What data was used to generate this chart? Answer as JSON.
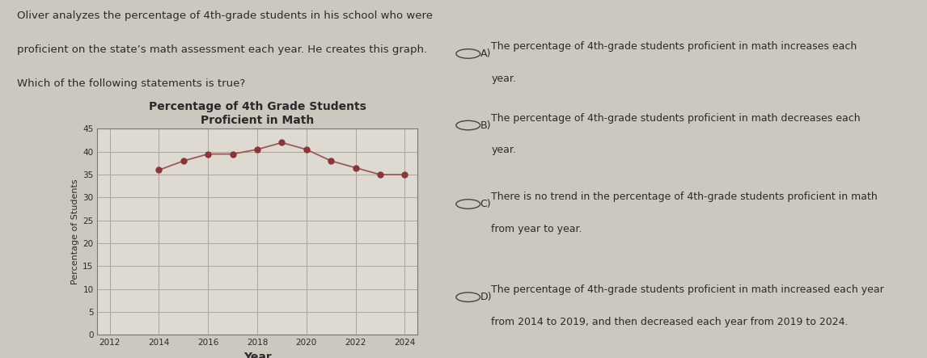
{
  "title_line1": "Percentage of 4th Grade Students",
  "title_line2": "Proficient in Math",
  "xlabel": "Year",
  "ylabel": "Percentage of Students",
  "years": [
    2014,
    2015,
    2016,
    2017,
    2018,
    2019,
    2020,
    2021,
    2022,
    2023,
    2024
  ],
  "values": [
    36,
    38,
    39.5,
    39.5,
    40.5,
    42,
    40.5,
    38,
    36.5,
    35,
    35
  ],
  "line_color": "#9b5a5a",
  "marker_color": "#8b3535",
  "bg_color": "#ccc8c0",
  "plot_bg_color": "#dedad2",
  "grid_color": "#aaa69e",
  "ylim": [
    0,
    45
  ],
  "yticks": [
    0,
    5,
    10,
    15,
    20,
    25,
    30,
    35,
    40,
    45
  ],
  "xtick_start": 2012,
  "xtick_end": 2024,
  "xtick_step": 2,
  "text_color": "#2a2a2a",
  "question_text_line1": "Oliver analyzes the percentage of 4th-grade students in his school who were",
  "question_text_line2": "proficient on the state’s math assessment each year. He creates this graph.",
  "question_text_line3": "Which of the following statements is true?",
  "opt_A_line1": "The percentage of 4th-grade students proficient in math increases each",
  "opt_A_line2": "year.",
  "opt_B_line1": "The percentage of 4th-grade students proficient in math decreases each",
  "opt_B_line2": "year.",
  "opt_C_line1": "There is no trend in the percentage of 4th-grade students proficient in math",
  "opt_C_line2": "from year to year.",
  "opt_D_line1": "The percentage of 4th-grade students proficient in math increased each year",
  "opt_D_line2": "from 2014 to 2019, and then decreased each year from 2019 to 2024.",
  "title_fontsize": 9,
  "axis_label_fontsize": 8,
  "tick_fontsize": 7.5,
  "text_fontsize": 9,
  "question_fontsize": 9.5
}
